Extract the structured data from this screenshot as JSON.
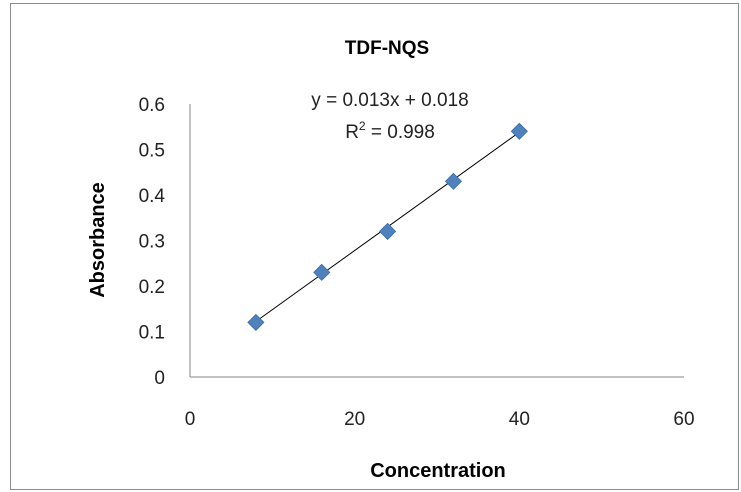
{
  "chart_data": {
    "type": "scatter",
    "title": "TDF-NQS",
    "xlabel": "Concentration",
    "ylabel": "Absorbance",
    "xlim": [
      0,
      60
    ],
    "ylim": [
      0,
      0.6
    ],
    "x_ticks": [
      "0",
      "20",
      "40",
      "60"
    ],
    "y_ticks": [
      "0",
      "0.1",
      "0.2",
      "0.3",
      "0.4",
      "0.5",
      "0.6"
    ],
    "grid": false,
    "marker_color": "#4f81bd",
    "series": [
      {
        "x": [
          8,
          16,
          24,
          32,
          40
        ],
        "y": [
          0.12,
          0.23,
          0.32,
          0.43,
          0.54
        ]
      }
    ],
    "trendline": {
      "slope": 0.013,
      "intercept": 0.018,
      "x_range": [
        8,
        40
      ],
      "equation": "y = 0.013x + 0.018",
      "r2_label": "R",
      "r2_exp": "2",
      "r2_value": " = 0.998"
    }
  }
}
